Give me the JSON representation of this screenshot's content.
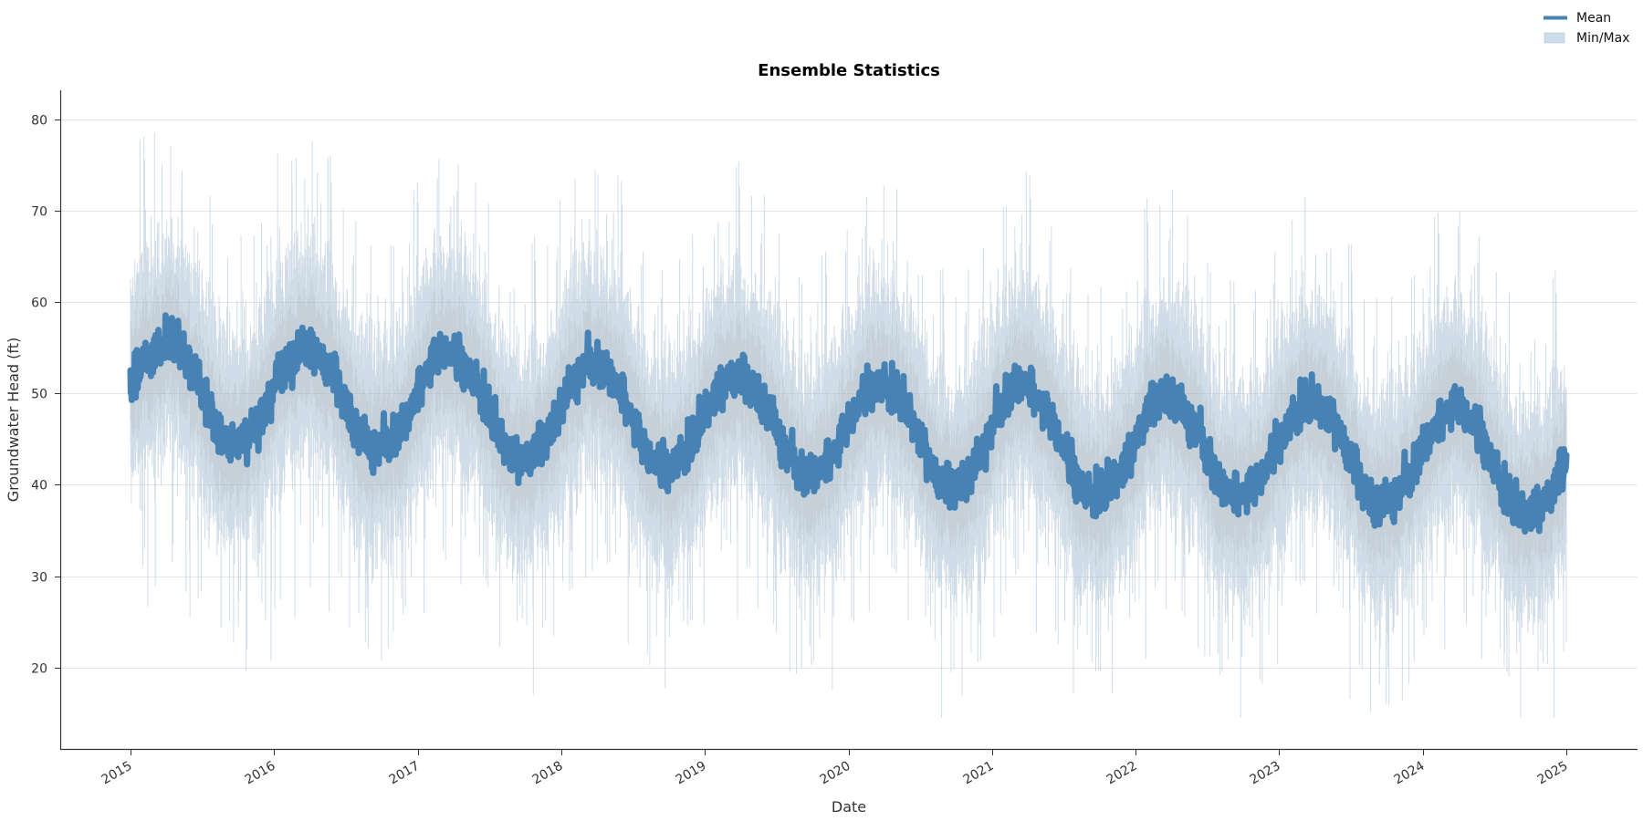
{
  "chart_data": {
    "type": "line",
    "title": "Ensemble Statistics",
    "xlabel": "Date",
    "ylabel": "Groundwater Head (ft)",
    "x_tick_labels": [
      "2015",
      "2016",
      "2017",
      "2018",
      "2019",
      "2020",
      "2021",
      "2022",
      "2023",
      "2024",
      "2025"
    ],
    "y_ticks": [
      20,
      30,
      40,
      50,
      60,
      70,
      80
    ],
    "ylim": [
      11.1,
      83.1
    ],
    "xlim": [
      2014.51,
      2025.5
    ],
    "data_range": [
      2015.0,
      2025.0
    ],
    "grid": {
      "y": true,
      "x": false
    },
    "legend": {
      "position": "upper right (outside axes)",
      "entries": [
        {
          "label": "Mean",
          "type": "line",
          "color": "#4682b4"
        },
        {
          "label": "Min/Max",
          "type": "band",
          "color": "#b0c8de"
        }
      ]
    },
    "colors": {
      "mean": "#4682b4",
      "band": "#a9bfd3",
      "band_core": "#a89a96",
      "grid": "#e6e6e6",
      "spine": "#333333"
    },
    "series": [
      {
        "name": "Mean",
        "description": "Daily ensemble mean; seasonal oscillation with slow downward trend (approx. monthly values)",
        "x": [
          2015.0,
          2015.08,
          2015.17,
          2015.25,
          2015.33,
          2015.42,
          2015.5,
          2015.58,
          2015.67,
          2015.75,
          2015.83,
          2015.92,
          2016.0,
          2016.08,
          2016.17,
          2016.25,
          2016.33,
          2016.42,
          2016.5,
          2016.58,
          2016.67,
          2016.75,
          2016.83,
          2016.92,
          2017.0,
          2017.08,
          2017.17,
          2017.25,
          2017.33,
          2017.42,
          2017.5,
          2017.58,
          2017.67,
          2017.75,
          2017.83,
          2017.92,
          2018.0,
          2018.08,
          2018.17,
          2018.25,
          2018.33,
          2018.42,
          2018.5,
          2018.58,
          2018.67,
          2018.75,
          2018.83,
          2018.92,
          2019.0,
          2019.08,
          2019.17,
          2019.25,
          2019.33,
          2019.42,
          2019.5,
          2019.58,
          2019.67,
          2019.75,
          2019.83,
          2019.92,
          2020.0,
          2020.08,
          2020.17,
          2020.25,
          2020.33,
          2020.42,
          2020.5,
          2020.58,
          2020.67,
          2020.75,
          2020.83,
          2020.92,
          2021.0,
          2021.08,
          2021.17,
          2021.25,
          2021.33,
          2021.42,
          2021.5,
          2021.58,
          2021.67,
          2021.75,
          2021.83,
          2021.92,
          2022.0,
          2022.08,
          2022.17,
          2022.25,
          2022.33,
          2022.42,
          2022.5,
          2022.58,
          2022.67,
          2022.75,
          2022.83,
          2022.92,
          2023.0,
          2023.08,
          2023.17,
          2023.25,
          2023.33,
          2023.42,
          2023.5,
          2023.58,
          2023.67,
          2023.75,
          2023.83,
          2023.92,
          2024.0,
          2024.08,
          2024.17,
          2024.25,
          2024.33,
          2024.42,
          2024.5,
          2024.58,
          2024.67,
          2024.75,
          2024.83,
          2024.92,
          2025.0
        ],
        "values": [
          51,
          53,
          55,
          56,
          55,
          53,
          50,
          47,
          45,
          45,
          46,
          48,
          51,
          53,
          55,
          55,
          54,
          52,
          49,
          46,
          44,
          44,
          45,
          47,
          50,
          53,
          55,
          54,
          53,
          51,
          48,
          45,
          43,
          43,
          44,
          46,
          49,
          51,
          53,
          53,
          52,
          50,
          47,
          44,
          42,
          42,
          43,
          45,
          48,
          50,
          52,
          52,
          51,
          49,
          46,
          43,
          41,
          41,
          42,
          44,
          47,
          49,
          51,
          51,
          50,
          48,
          45,
          42,
          40,
          40,
          41,
          43,
          46,
          49,
          51,
          51,
          49,
          47,
          44,
          41,
          39,
          39,
          40,
          42,
          45,
          48,
          50,
          50,
          48,
          46,
          43,
          40,
          39,
          39,
          40,
          42,
          45,
          47,
          49,
          49,
          48,
          46,
          43,
          40,
          38,
          38,
          39,
          41,
          44,
          46,
          48,
          49,
          47,
          45,
          42,
          39,
          37,
          37,
          38,
          40,
          43
        ]
      },
      {
        "name": "Min",
        "description": "Ensemble minimum (approx. typical lower envelope; spikes reach ~15 ft)",
        "offset_from_mean_typical": -12,
        "extreme_low": 14.5
      },
      {
        "name": "Max",
        "description": "Ensemble maximum (approx. typical upper envelope; spikes reach ~80 ft in early 2018)",
        "offset_from_mean_typical": 12,
        "extreme_high": 80
      }
    ]
  }
}
